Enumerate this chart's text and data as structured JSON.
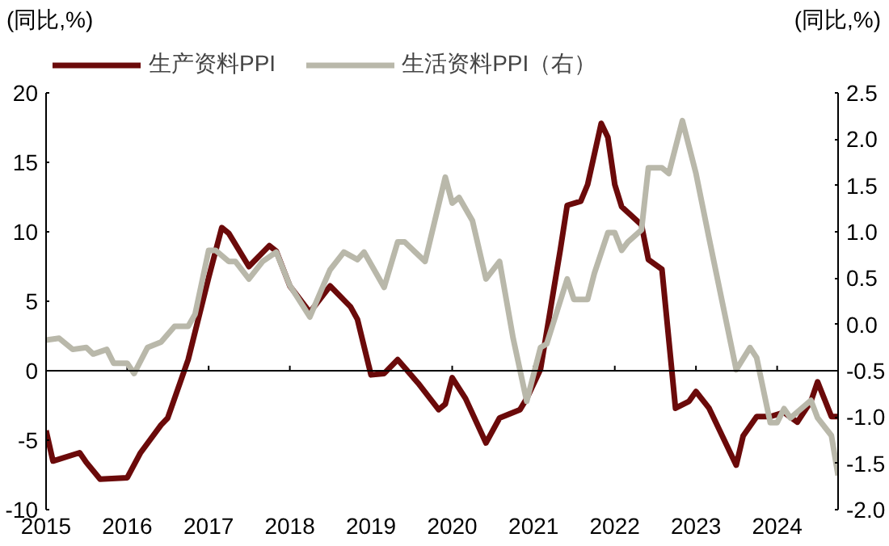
{
  "chart_data": {
    "type": "line",
    "ylabel": "(同比,%)",
    "y2label": "(同比,%)",
    "xlim": [
      "2015-01",
      "2024-10"
    ],
    "xticks": [
      {
        "value": "2015-01",
        "label": "2015"
      },
      {
        "value": "2016-01",
        "label": "2016"
      },
      {
        "value": "2017-01",
        "label": "2017"
      },
      {
        "value": "2018-01",
        "label": "2018"
      },
      {
        "value": "2019-01",
        "label": "2019"
      },
      {
        "value": "2020-01",
        "label": "2020"
      },
      {
        "value": "2021-01",
        "label": "2021"
      },
      {
        "value": "2022-01",
        "label": "2022"
      },
      {
        "value": "2023-01",
        "label": "2023"
      },
      {
        "value": "2024-01",
        "label": "2024"
      }
    ],
    "ylim": [
      -10,
      20
    ],
    "yticks": [
      -10,
      -5,
      0,
      5,
      10,
      15,
      20
    ],
    "y2lim": [
      -2.0,
      2.5
    ],
    "y2ticks": [
      {
        "value": -2.0,
        "label": "-2.0"
      },
      {
        "value": -1.5,
        "label": "-1.5"
      },
      {
        "value": -1.0,
        "label": "-1.0"
      },
      {
        "value": -0.5,
        "label": "-0.5"
      },
      {
        "value": 0.0,
        "label": "0.0"
      },
      {
        "value": 0.5,
        "label": "0.5"
      },
      {
        "value": 1.0,
        "label": "1.0"
      },
      {
        "value": 1.5,
        "label": "1.5"
      },
      {
        "value": 2.0,
        "label": "2.0"
      },
      {
        "value": 2.5,
        "label": "2.5"
      }
    ],
    "ref_lines": [
      {
        "axis": "y",
        "value": 0,
        "color": "#000000"
      }
    ],
    "legend": "top",
    "grid": false,
    "marker": "none",
    "line_style": "solid",
    "series": [
      {
        "name": "生产资料PPI",
        "color": "#6b0a0a",
        "x": [
          "2015-01",
          "2015-02",
          "2015-06",
          "2015-07",
          "2015-09",
          "2016-01",
          "2016-03",
          "2016-06",
          "2016-07",
          "2016-10",
          "2017-01",
          "2017-03",
          "2017-04",
          "2017-07",
          "2017-10",
          "2017-11",
          "2018-01",
          "2018-04",
          "2018-07",
          "2018-10",
          "2018-11",
          "2019-01",
          "2019-03",
          "2019-05",
          "2019-08",
          "2019-11",
          "2019-12",
          "2020-01",
          "2020-03",
          "2020-06",
          "2020-08",
          "2020-11",
          "2020-12",
          "2021-02",
          "2021-05",
          "2021-06",
          "2021-08",
          "2021-09",
          "2021-11",
          "2021-12",
          "2022-01",
          "2022-02",
          "2022-05",
          "2022-06",
          "2022-08",
          "2022-10",
          "2022-12",
          "2023-01",
          "2023-03",
          "2023-07",
          "2023-08",
          "2023-10",
          "2023-12",
          "2024-02",
          "2024-04",
          "2024-06",
          "2024-07",
          "2024-09",
          "2024-10"
        ],
        "values": [
          -4.3,
          -6.5,
          -5.9,
          -6.6,
          -7.8,
          -7.7,
          -5.9,
          -3.9,
          -3.4,
          0.8,
          6.7,
          10.3,
          9.9,
          7.5,
          9.0,
          8.6,
          6.1,
          4.2,
          6.1,
          4.6,
          3.7,
          -0.3,
          -0.2,
          0.8,
          -0.9,
          -2.8,
          -2.4,
          -0.5,
          -2.0,
          -5.2,
          -3.4,
          -2.8,
          -2.0,
          0.1,
          8.7,
          11.9,
          12.2,
          13.4,
          17.8,
          16.8,
          13.4,
          11.8,
          10.5,
          8.0,
          7.3,
          -2.7,
          -2.2,
          -1.5,
          -2.7,
          -6.8,
          -4.7,
          -3.3,
          -3.3,
          -3.0,
          -3.7,
          -2.2,
          -0.8,
          -3.3,
          -3.3
        ]
      },
      {
        "name": "生活资料PPI（右）",
        "color": "#b9b8aa",
        "axis": "y2",
        "x": [
          "2015-01",
          "2015-03",
          "2015-05",
          "2015-07",
          "2015-08",
          "2015-10",
          "2015-11",
          "2016-01",
          "2016-02",
          "2016-04",
          "2016-06",
          "2016-08",
          "2016-10",
          "2016-11",
          "2017-01",
          "2017-02",
          "2017-04",
          "2017-05",
          "2017-07",
          "2017-09",
          "2017-11",
          "2018-01",
          "2018-04",
          "2018-07",
          "2018-09",
          "2018-11",
          "2018-12",
          "2019-03",
          "2019-05",
          "2019-06",
          "2019-09",
          "2019-12",
          "2020-01",
          "2020-02",
          "2020-04",
          "2020-06",
          "2020-08",
          "2020-10",
          "2020-12",
          "2021-02",
          "2021-03",
          "2021-06",
          "2021-07",
          "2021-09",
          "2021-10",
          "2021-12",
          "2022-01",
          "2022-02",
          "2022-03",
          "2022-05",
          "2022-06",
          "2022-08",
          "2022-09",
          "2022-11",
          "2023-01",
          "2023-03",
          "2023-07",
          "2023-09",
          "2023-10",
          "2023-12",
          "2024-01",
          "2024-02",
          "2024-03",
          "2024-06",
          "2024-07",
          "2024-09",
          "2024-10"
        ],
        "values": [
          -0.17,
          -0.15,
          -0.27,
          -0.25,
          -0.32,
          -0.27,
          -0.42,
          -0.42,
          -0.53,
          -0.25,
          -0.19,
          -0.02,
          -0.02,
          0.11,
          0.8,
          0.8,
          0.68,
          0.68,
          0.49,
          0.68,
          0.78,
          0.42,
          0.08,
          0.59,
          0.78,
          0.7,
          0.78,
          0.4,
          0.89,
          0.89,
          0.68,
          1.59,
          1.31,
          1.37,
          1.12,
          0.49,
          0.68,
          -0.15,
          -0.83,
          -0.25,
          -0.21,
          0.49,
          0.27,
          0.27,
          0.55,
          0.99,
          0.99,
          0.8,
          0.89,
          1.02,
          1.69,
          1.69,
          1.63,
          2.2,
          1.63,
          0.93,
          -0.49,
          -0.25,
          -0.36,
          -1.06,
          -1.06,
          -0.91,
          -1.01,
          -0.82,
          -1.01,
          -1.2,
          -1.63
        ]
      }
    ]
  }
}
